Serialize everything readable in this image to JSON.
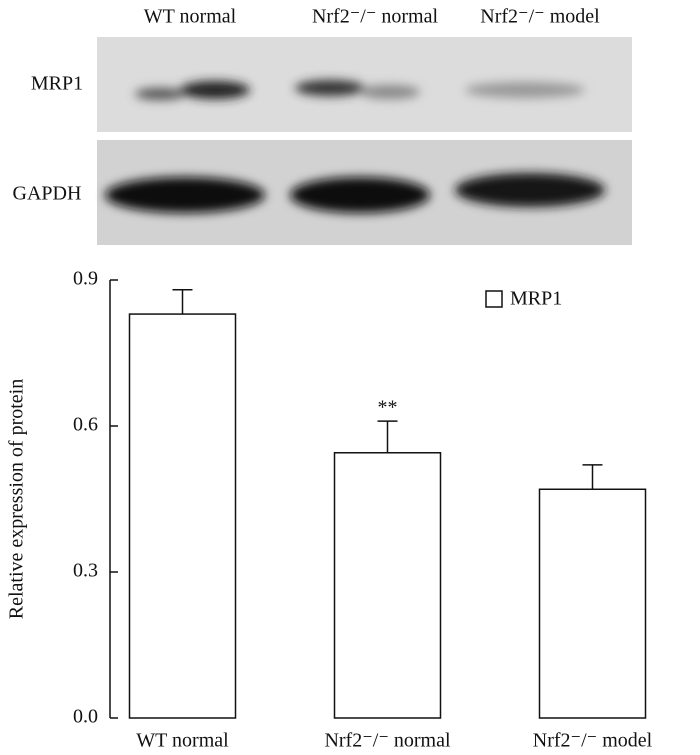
{
  "blot": {
    "column_labels": [
      "WT normal",
      "Nrf2⁻/⁻ normal",
      "Nrf2⁻/⁻ model"
    ],
    "row_labels": [
      "MRP1",
      "GAPDH"
    ]
  },
  "chart_data": {
    "type": "bar",
    "y_label": "Relative expression of protein",
    "categories": [
      "WT normal",
      "Nrf2⁻/⁻ normal",
      "Nrf2⁻/⁻ model"
    ],
    "series": [
      {
        "name": "MRP1",
        "color": "#ffffff",
        "values": [
          0.83,
          0.545,
          0.47
        ],
        "errors": [
          0.05,
          0.065,
          0.05
        ]
      }
    ],
    "annotations": [
      {
        "category": 1,
        "text": "**"
      }
    ],
    "ylim": [
      0,
      0.9
    ],
    "yticks": [
      {
        "value": 0,
        "label": "0.0"
      },
      0.3,
      0.6,
      0.9
    ],
    "legend": "upper right"
  }
}
